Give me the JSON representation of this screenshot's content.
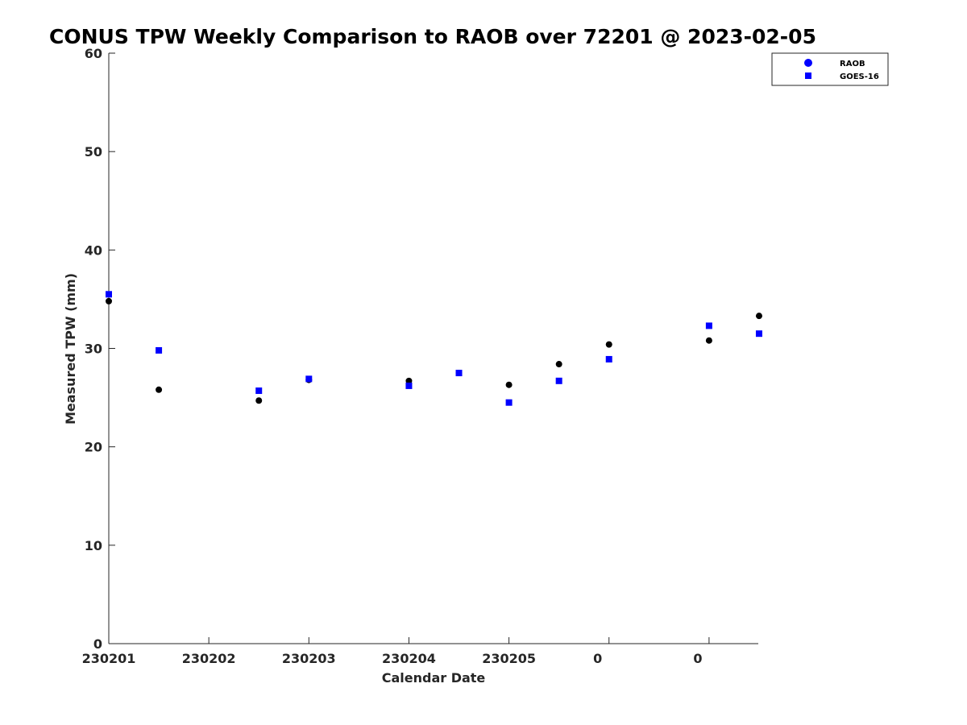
{
  "chart_data": {
    "type": "scatter",
    "title": "CONUS TPW Weekly Comparison to RAOB over 72201 @ 2023-02-05",
    "xlabel": "Calendar Date",
    "ylabel": "Measured TPW (mm)",
    "ylim": [
      0,
      60
    ],
    "yticks": [
      0,
      10,
      20,
      30,
      40,
      50,
      60
    ],
    "xlim": [
      0,
      6.5
    ],
    "xticks": [
      {
        "value": 0,
        "label": "230201"
      },
      {
        "value": 1,
        "label": "230202"
      },
      {
        "value": 2,
        "label": "230203"
      },
      {
        "value": 3,
        "label": "230204"
      },
      {
        "value": 4,
        "label": "230205"
      },
      {
        "value": 5,
        "label": "0"
      },
      {
        "value": 6,
        "label": "0"
      }
    ],
    "grid": false,
    "legend_position": "top-right",
    "series": [
      {
        "name": "RAOB",
        "marker": "circle",
        "legend_color": "#0000ff",
        "color": "#000000",
        "x": [
          0,
          0.5,
          1.5,
          2,
          3,
          3.5,
          4,
          4.5,
          5,
          6,
          6.5
        ],
        "y": [
          34.8,
          25.8,
          24.7,
          26.8,
          26.7,
          27.5,
          26.3,
          28.4,
          30.4,
          30.8,
          33.3
        ]
      },
      {
        "name": "GOES-16",
        "marker": "square",
        "color": "#0000ff",
        "x": [
          0,
          0.5,
          1.5,
          2,
          3,
          3.5,
          4,
          4.5,
          5,
          6,
          6.5
        ],
        "y": [
          35.5,
          29.8,
          25.7,
          26.9,
          26.2,
          27.5,
          24.5,
          26.7,
          28.9,
          32.3,
          31.5
        ]
      }
    ]
  }
}
